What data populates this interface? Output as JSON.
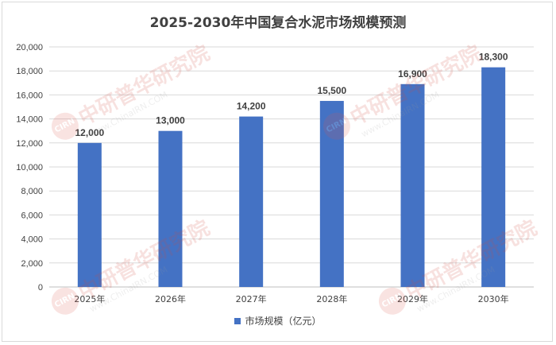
{
  "chart_data": {
    "type": "bar",
    "title": "2025-2030年中国复合水泥市场规模预测",
    "categories": [
      "2025年",
      "2026年",
      "2027年",
      "2028年",
      "2029年",
      "2030年"
    ],
    "series": [
      {
        "name": "市场规模（亿元）",
        "values": [
          12000,
          13000,
          14200,
          15500,
          16900,
          18300
        ]
      }
    ],
    "data_labels": [
      "12,000",
      "13,000",
      "14,200",
      "15,500",
      "16,900",
      "18,300"
    ],
    "ylim": [
      0,
      20000
    ],
    "y_ticks": [
      "0",
      "2,000",
      "4,000",
      "6,000",
      "8,000",
      "10,000",
      "12,000",
      "14,000",
      "16,000",
      "18,000",
      "20,000"
    ],
    "grid": true,
    "legend_position": "bottom",
    "bar_color": "#4472c4"
  },
  "watermark": {
    "logo_text": "CIRN",
    "cn_text": "中研普华研究院",
    "en_text": "www.ChinaIRN.COM"
  }
}
